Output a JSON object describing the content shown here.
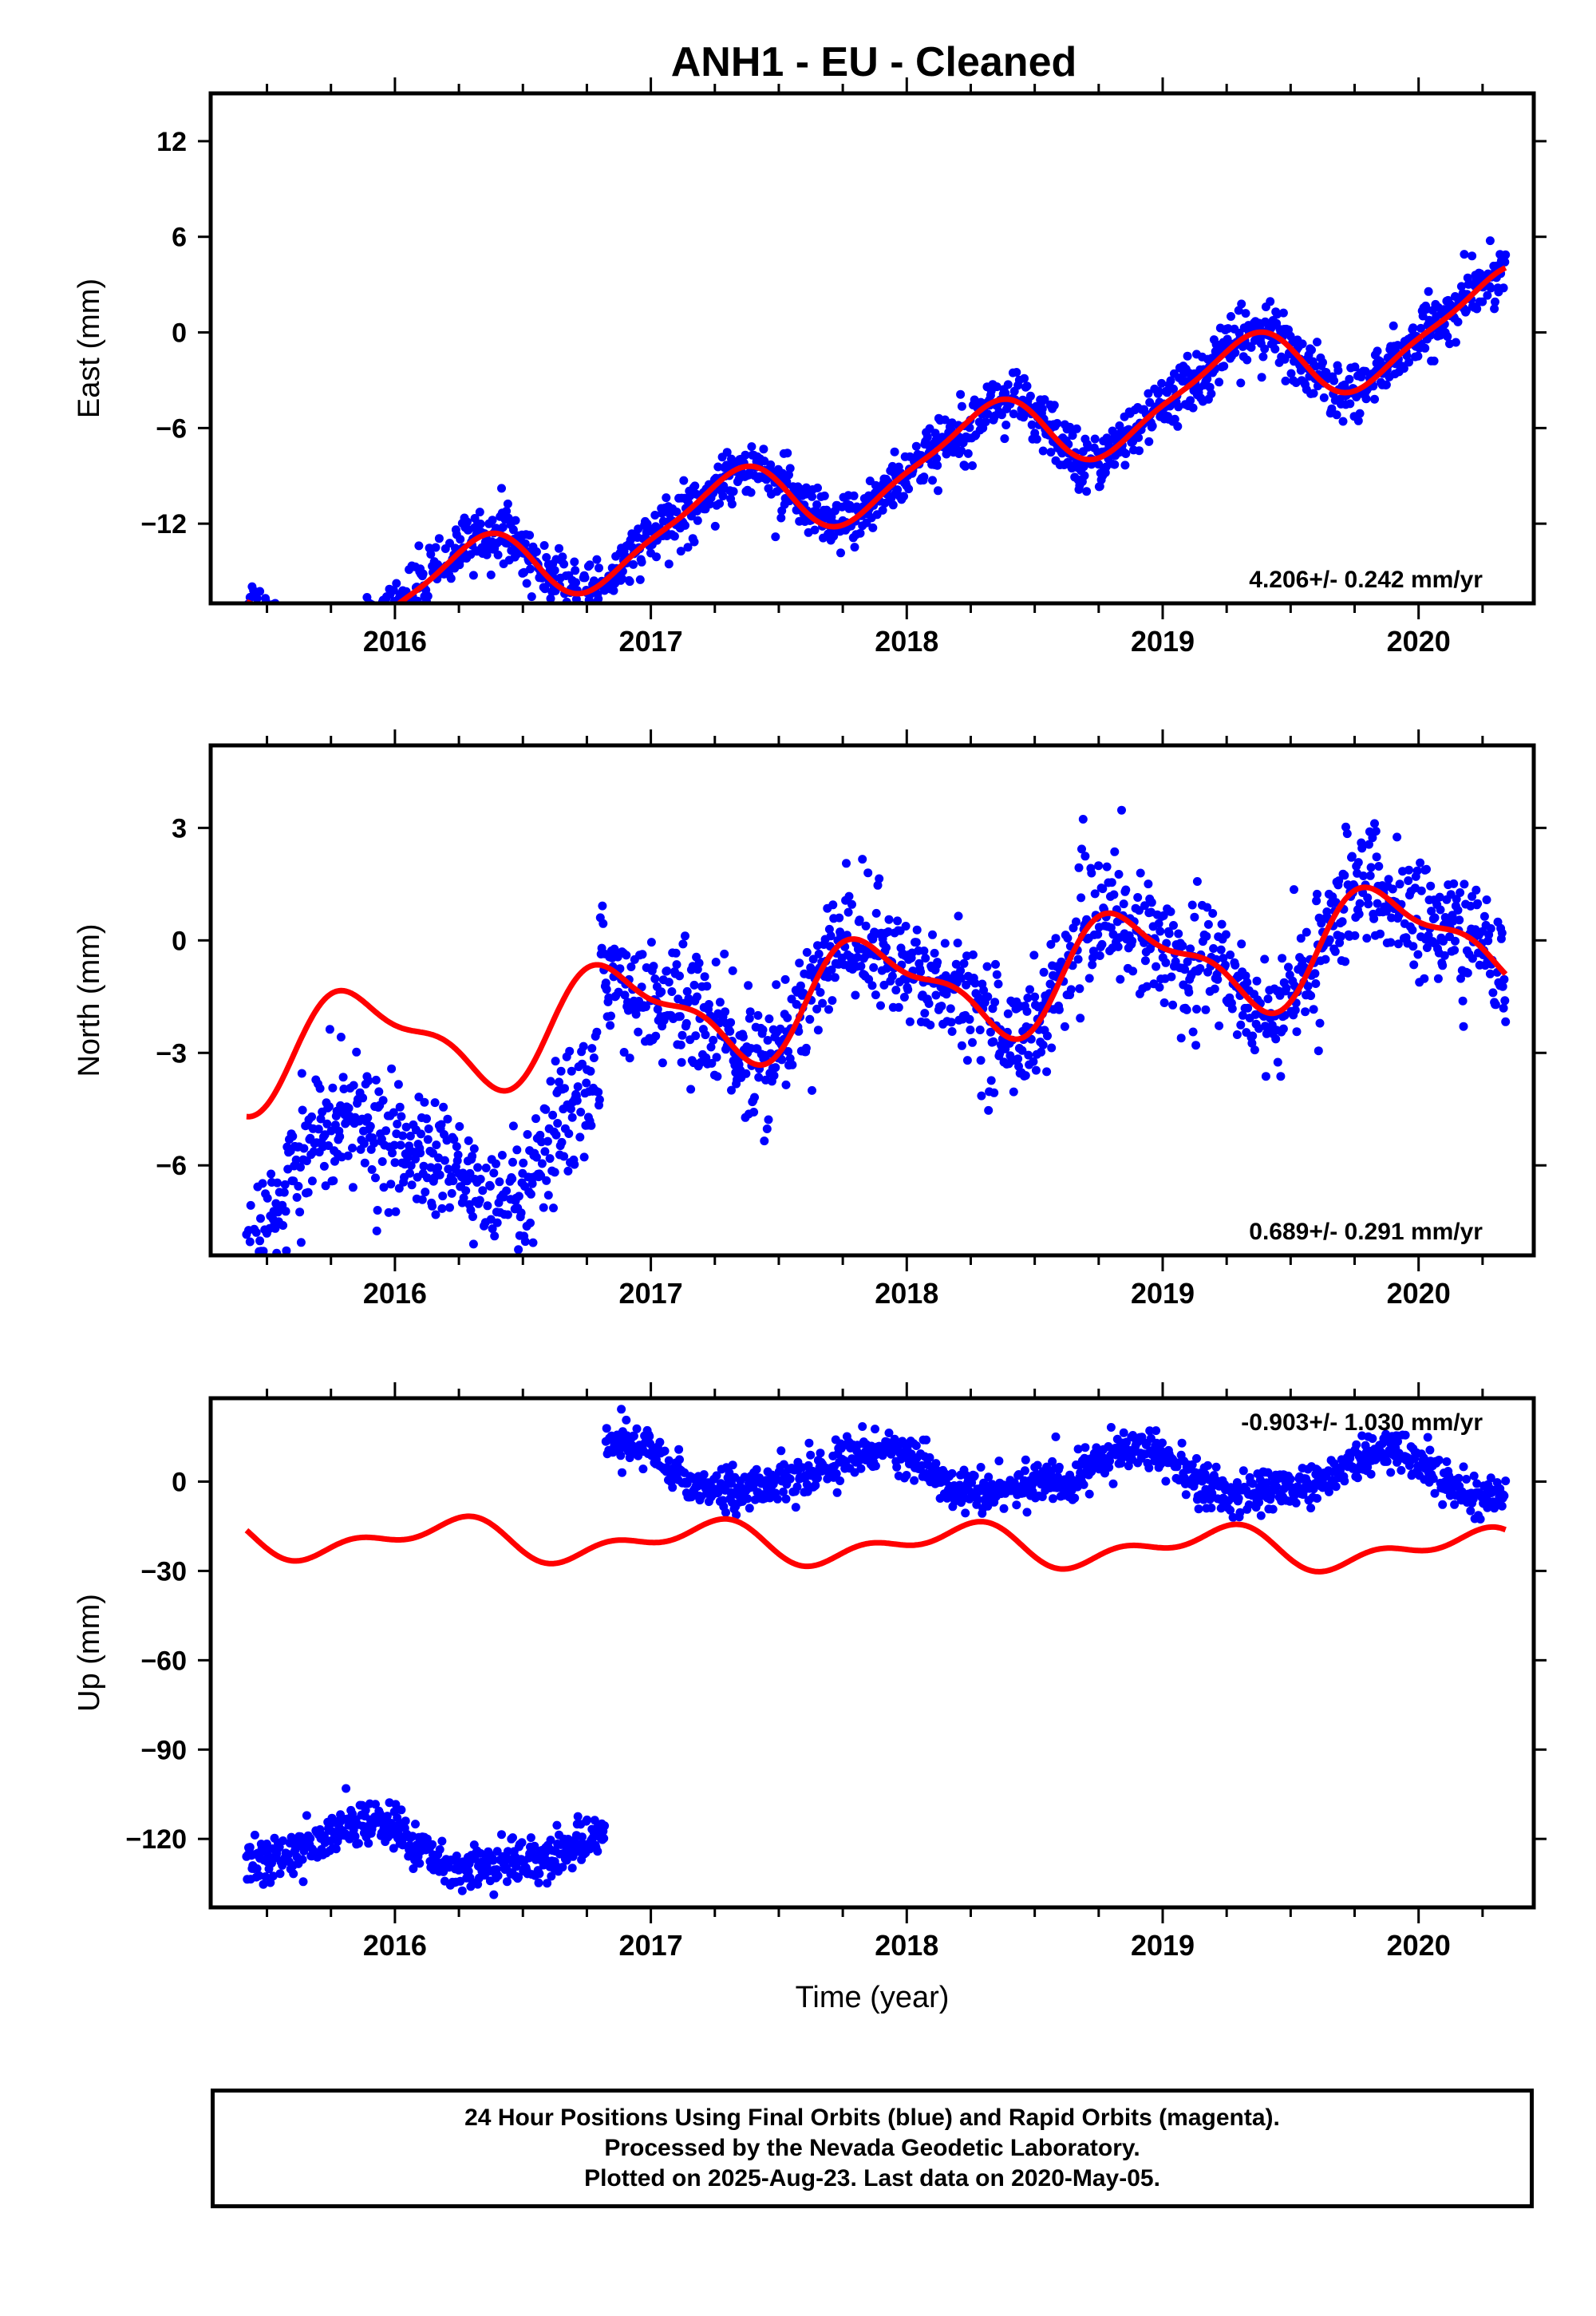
{
  "title": "ANH1  - EU - Cleaned",
  "colors": {
    "points": "#0000ff",
    "model": "#ff0000",
    "axes": "#000000",
    "background": "#ffffff"
  },
  "footer": {
    "line1": "24 Hour Positions Using Final Orbits (blue) and Rapid Orbits (magenta).",
    "line2": "Processed by the Nevada Geodetic Laboratory.",
    "line3": "Plotted on 2025-Aug-23. Last data on 2020-May-05."
  },
  "chart_data": [
    {
      "type": "scatter",
      "title": "ANH1  - EU - Cleaned",
      "ylabel": "East (mm)",
      "xlabel": "",
      "xlim": [
        2015.28,
        2020.45
      ],
      "ylim": [
        -17,
        15
      ],
      "yticks": [
        -12,
        -6,
        0,
        6,
        12
      ],
      "xticks": [
        2016,
        2017,
        2018,
        2019,
        2020
      ],
      "x_tick_labels": [
        "2016",
        "2017",
        "2018",
        "2019",
        "2020"
      ],
      "velocity_label": "4.206+/- 0.242 mm/yr",
      "data_span": [
        2015.42,
        2020.34
      ],
      "series": [
        {
          "kind": "daily-positions",
          "rate": 4.206,
          "intercept": -8.4,
          "amp_annual": 2.4,
          "phase_annual": 0.05,
          "amp_semiannual": 0.6,
          "phase_semiannual": 0.3,
          "scatter": 0.9,
          "offsets": []
        },
        {
          "kind": "model-curve",
          "rate": 4.206,
          "intercept": -8.4,
          "amp_annual": 2.4,
          "phase_annual": 0.05,
          "amp_semiannual": 0.6,
          "phase_semiannual": 0.3,
          "offsets": []
        }
      ]
    },
    {
      "type": "scatter",
      "ylabel": "North (mm)",
      "xlabel": "",
      "xlim": [
        2015.28,
        2020.45
      ],
      "ylim": [
        -8.4,
        5.2
      ],
      "yticks": [
        -6,
        -3,
        0,
        3
      ],
      "xticks": [
        2016,
        2017,
        2018,
        2019,
        2020
      ],
      "x_tick_labels": [
        "2016",
        "2017",
        "2018",
        "2019",
        "2020"
      ],
      "velocity_label": "0.689+/- 0.291 mm/yr",
      "data_span": [
        2015.42,
        2020.34
      ],
      "series": [
        {
          "kind": "daily-positions",
          "rate": 0.689,
          "intercept": -1.3,
          "amp_annual": 1.3,
          "phase_annual": 0.62,
          "amp_semiannual": 0.5,
          "phase_semiannual": 0.1,
          "scatter": 0.8,
          "offsets": [
            {
              "from": 2015.42,
              "to": 2016.8,
              "delta": -3.3
            }
          ]
        },
        {
          "kind": "model-curve",
          "rate": 0.689,
          "intercept": -1.3,
          "amp_annual": 1.3,
          "phase_annual": 0.62,
          "amp_semiannual": 0.5,
          "phase_semiannual": 0.1,
          "offsets": []
        }
      ]
    },
    {
      "type": "scatter",
      "ylabel": "Up (mm)",
      "xlabel": "Time (year)",
      "xlim": [
        2015.28,
        2020.45
      ],
      "ylim": [
        -143,
        28
      ],
      "yticks": [
        -120,
        -90,
        -60,
        -30,
        0
      ],
      "xticks": [
        2016,
        2017,
        2018,
        2019,
        2020
      ],
      "x_tick_labels": [
        "2016",
        "2017",
        "2018",
        "2019",
        "2020"
      ],
      "velocity_label": "-0.903+/- 1.030 mm/yr",
      "data_span": [
        2015.42,
        2020.34
      ],
      "series": [
        {
          "kind": "daily-positions",
          "rate": -0.903,
          "intercept": 3.0,
          "amp_annual": 7.0,
          "phase_annual": 0.62,
          "amp_semiannual": 2.0,
          "phase_semiannual": 0.3,
          "scatter": 3.5,
          "offsets": [
            {
              "from": 2015.42,
              "to": 2016.82,
              "delta": -128.0
            }
          ]
        },
        {
          "kind": "model-curve",
          "rate": -0.903,
          "intercept": -21.0,
          "amp_annual": 5.5,
          "phase_annual": 0.95,
          "amp_semiannual": 3.5,
          "phase_semiannual": 0.7,
          "offsets": []
        }
      ]
    }
  ]
}
